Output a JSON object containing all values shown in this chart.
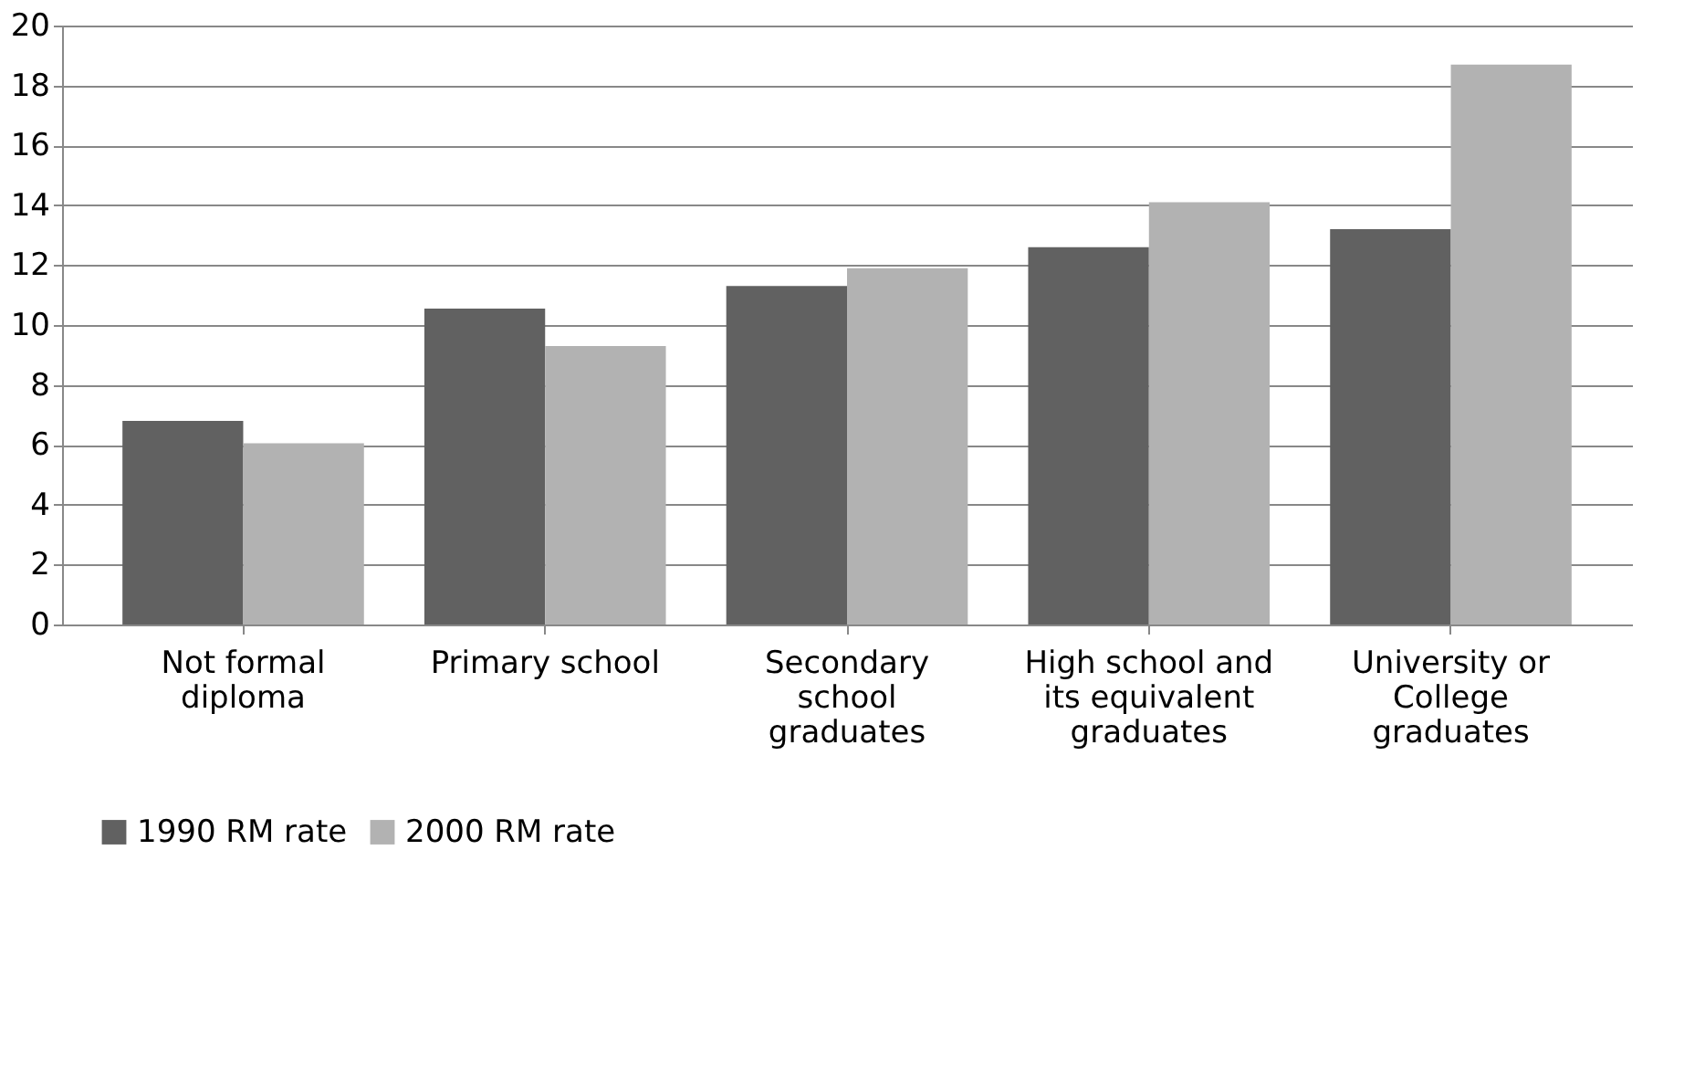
{
  "chart_data": {
    "type": "bar",
    "categories": [
      "Not formal diploma",
      "Primary school",
      "Secondary school graduates",
      "High school and its equivalent graduates",
      "University or College graduates"
    ],
    "series": [
      {
        "name": "1990 RM rate",
        "color": "#616161",
        "values": [
          6.8,
          10.55,
          11.3,
          12.6,
          13.2
        ]
      },
      {
        "name": "2000 RM rate",
        "color": "#b2b2b2",
        "values": [
          6.05,
          9.3,
          11.9,
          14.1,
          18.7
        ]
      }
    ],
    "ylim": [
      0,
      20
    ],
    "yticks": [
      0,
      2,
      4,
      6,
      8,
      10,
      12,
      14,
      16,
      18,
      20
    ],
    "grid": "y",
    "legend": "bottom"
  }
}
